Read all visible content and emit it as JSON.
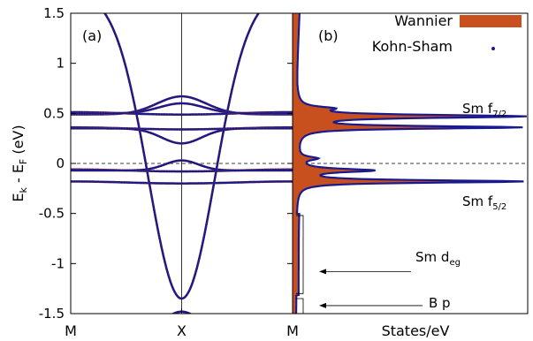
{
  "chart_data": [
    {
      "type": "line",
      "panel_label": "(a)",
      "ylabel": "E_k - E_F (eV)",
      "ylabel_parts": {
        "main": "E",
        "sub1": "k",
        "mid": " - E",
        "sub2": "F",
        "tail": " (eV)"
      },
      "ylim": [
        -1.5,
        1.5
      ],
      "yticks": [
        -1.5,
        -1,
        -0.5,
        0,
        0.5,
        1,
        1.5
      ],
      "ytick_labels": [
        "-1.5",
        "-1",
        "-0.5",
        "0",
        "0.5",
        "1",
        "1.5"
      ],
      "xlim": [
        0,
        2
      ],
      "xticks": [
        0,
        1,
        2
      ],
      "xtick_labels": [
        "M",
        "X",
        "M"
      ],
      "fermi_level": 0,
      "series": [
        {
          "name": "Wannier",
          "color": "#c8501e"
        },
        {
          "name": "Kohn-Sham",
          "color": "#1a1a8c"
        }
      ],
      "bands": [
        {
          "kind": "flat",
          "energy": 0.5,
          "width": 0.012
        },
        {
          "kind": "flat",
          "energy": 0.35,
          "width": 0.01
        },
        {
          "kind": "flat",
          "energy": -0.07,
          "width": 0.01
        },
        {
          "kind": "flat",
          "energy": -0.19,
          "width": 0.01
        },
        {
          "kind": "bump",
          "base": 0.49,
          "peak": 0.67,
          "sigma": 0.22
        },
        {
          "kind": "bump",
          "base": 0.5,
          "peak": 0.6,
          "sigma": 0.2
        },
        {
          "kind": "bump",
          "base": 0.35,
          "peak": 0.2,
          "sigma": 0.18
        },
        {
          "kind": "bump",
          "base": -0.07,
          "peak": 0.03,
          "sigma": 0.15
        },
        {
          "kind": "dispersive",
          "at_M": 1.5,
          "min_at_X": -1.35,
          "sigma": 0.3
        },
        {
          "kind": "dispersive_low",
          "at_M": 1.5,
          "min_at_X": -1.48,
          "sigma": 0.16
        }
      ]
    },
    {
      "type": "area",
      "panel_label": "(b)",
      "xlabel": "States/eV",
      "ylim": [
        -1.5,
        1.5
      ],
      "legend_position": "top-right",
      "series": [
        {
          "name": "Wannier",
          "color": "#c8501e"
        },
        {
          "name": "Kohn-Sham",
          "color": "#1a1a8c"
        }
      ],
      "peaks": [
        {
          "energy": 0.47,
          "height": 0.97,
          "width": 0.018
        },
        {
          "energy": 0.36,
          "height": 0.95,
          "width": 0.015
        },
        {
          "energy": 0.55,
          "height": 0.12,
          "width": 0.02
        },
        {
          "energy": -0.18,
          "height": 0.97,
          "width": 0.015
        },
        {
          "energy": -0.07,
          "height": 0.32,
          "width": 0.02
        },
        {
          "energy": 0.05,
          "height": 0.08,
          "width": 0.02
        }
      ],
      "annotations": [
        {
          "label": "Sm f",
          "sub": "7/2",
          "energy": 0.6
        },
        {
          "label": "Sm f",
          "sub": "5/2",
          "energy": -0.36
        }
      ],
      "bracket_labels": [
        {
          "label": "Sm d",
          "sub": "eg",
          "energy_top": -0.52,
          "energy_bottom": -1.3,
          "arrow_energy": -1.08
        },
        {
          "label": "B p",
          "sub": "",
          "energy_top": -1.35,
          "energy_bottom": -1.5,
          "arrow_energy": -1.42
        }
      ]
    }
  ]
}
